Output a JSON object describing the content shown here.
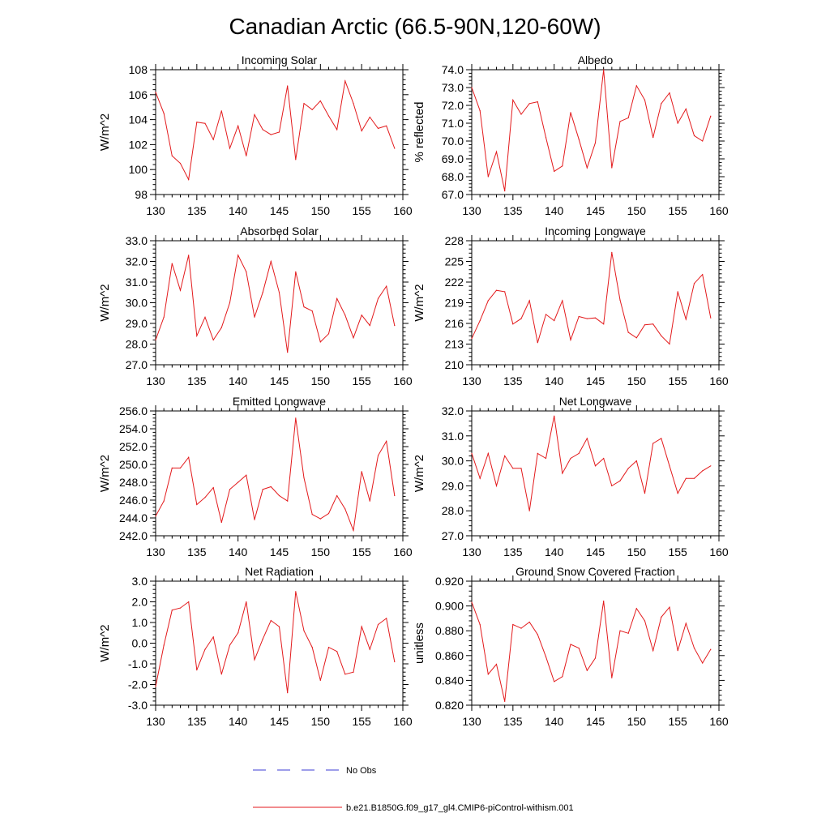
{
  "figure": {
    "title": "Canadian Arctic (66.5-90N,120-60W)"
  },
  "legend": {
    "items": [
      {
        "label": "No Obs",
        "color": "#3b3bd6",
        "style": "dashed"
      },
      {
        "label": "b.e21.B1850G.f09_g17_gl4.CMIP6-piControl-withism.001",
        "color": "#e31a1c",
        "style": "solid"
      }
    ]
  },
  "chart_data": [
    {
      "type": "line",
      "title": "Incoming Solar",
      "xlabel": "",
      "ylabel": "W/m^2",
      "xlim": [
        130,
        160
      ],
      "ylim": [
        98,
        108
      ],
      "yticks": [
        98,
        100,
        102,
        104,
        106,
        108
      ],
      "ytick_labels": [
        "98",
        "100",
        "102",
        "104",
        "106",
        "108"
      ],
      "xticks": [
        130,
        135,
        140,
        145,
        150,
        155,
        160
      ],
      "xtick_labels": [
        "130",
        "135",
        "140",
        "145",
        "150",
        "155",
        "160"
      ],
      "series": [
        {
          "name": "b.e21.B1850G.f09_g17_gl4.CMIP6-piControl-withism.001",
          "color": "#e31a1c",
          "x": [
            130,
            131,
            132,
            133,
            134,
            135,
            136,
            137,
            138,
            139,
            140,
            141,
            142,
            143,
            144,
            145,
            146,
            147,
            148,
            149,
            150,
            151,
            152,
            153,
            154,
            155,
            156,
            157,
            158,
            159
          ],
          "values": [
            106.2,
            104.5,
            101.1,
            100.5,
            99.2,
            103.8,
            103.7,
            102.4,
            104.7,
            101.7,
            103.5,
            101.1,
            104.4,
            103.2,
            102.8,
            103.0,
            106.7,
            100.8,
            105.3,
            104.8,
            105.5,
            104.3,
            103.2,
            107.1,
            105.3,
            103.1,
            104.2,
            103.3,
            103.5,
            101.7
          ]
        }
      ]
    },
    {
      "type": "line",
      "title": "Albedo",
      "xlabel": "",
      "ylabel": "% reflected",
      "xlim": [
        130,
        160
      ],
      "ylim": [
        67,
        74
      ],
      "yticks": [
        67,
        68,
        69,
        70,
        71,
        72,
        73,
        74
      ],
      "ytick_labels": [
        "67.0",
        "68.0",
        "69.0",
        "70.0",
        "71.0",
        "72.0",
        "73.0",
        "74.0"
      ],
      "xticks": [
        130,
        135,
        140,
        145,
        150,
        155,
        160
      ],
      "xtick_labels": [
        "130",
        "135",
        "140",
        "145",
        "150",
        "155",
        "160"
      ],
      "series": [
        {
          "name": "b.e21.B1850G.f09_g17_gl4.CMIP6-piControl-withism.001",
          "color": "#e31a1c",
          "x": [
            130,
            131,
            132,
            133,
            134,
            135,
            136,
            137,
            138,
            139,
            140,
            141,
            142,
            143,
            144,
            145,
            146,
            147,
            148,
            149,
            150,
            151,
            152,
            153,
            154,
            155,
            156,
            157,
            158,
            159
          ],
          "values": [
            73.0,
            71.7,
            68.0,
            69.4,
            67.2,
            72.3,
            71.5,
            72.1,
            72.2,
            70.2,
            68.3,
            68.6,
            71.6,
            70.1,
            68.5,
            69.9,
            74.0,
            68.5,
            71.1,
            71.3,
            73.1,
            72.3,
            70.2,
            72.1,
            72.7,
            71.0,
            71.8,
            70.3,
            70.0,
            71.4
          ]
        }
      ]
    },
    {
      "type": "line",
      "title": "Absorbed Solar",
      "xlabel": "",
      "ylabel": "W/m^2",
      "xlim": [
        130,
        160
      ],
      "ylim": [
        27,
        33
      ],
      "yticks": [
        27,
        28,
        29,
        30,
        31,
        32,
        33
      ],
      "ytick_labels": [
        "27.0",
        "28.0",
        "29.0",
        "30.0",
        "31.0",
        "32.0",
        "33.0"
      ],
      "xticks": [
        130,
        135,
        140,
        145,
        150,
        155,
        160
      ],
      "xtick_labels": [
        "130",
        "135",
        "140",
        "145",
        "150",
        "155",
        "160"
      ],
      "series": [
        {
          "name": "b.e21.B1850G.f09_g17_gl4.CMIP6-piControl-withism.001",
          "color": "#e31a1c",
          "x": [
            130,
            131,
            132,
            133,
            134,
            135,
            136,
            137,
            138,
            139,
            140,
            141,
            142,
            143,
            144,
            145,
            146,
            147,
            148,
            149,
            150,
            151,
            152,
            153,
            154,
            155,
            156,
            157,
            158,
            159
          ],
          "values": [
            28.2,
            29.3,
            31.9,
            30.6,
            32.3,
            28.4,
            29.3,
            28.2,
            28.8,
            30.0,
            32.3,
            31.5,
            29.3,
            30.5,
            32.0,
            30.5,
            27.6,
            31.5,
            29.8,
            29.6,
            28.1,
            28.5,
            30.2,
            29.4,
            28.3,
            29.4,
            28.9,
            30.2,
            30.8,
            28.9
          ]
        }
      ]
    },
    {
      "type": "line",
      "title": "Incoming Longwave",
      "xlabel": "",
      "ylabel": "W/m^2",
      "xlim": [
        130,
        160
      ],
      "ylim": [
        210,
        228
      ],
      "yticks": [
        210,
        213,
        216,
        219,
        222,
        225,
        228
      ],
      "ytick_labels": [
        "210",
        "213",
        "216",
        "219",
        "222",
        "225",
        "228"
      ],
      "xticks": [
        130,
        135,
        140,
        145,
        150,
        155,
        160
      ],
      "xtick_labels": [
        "130",
        "135",
        "140",
        "145",
        "150",
        "155",
        "160"
      ],
      "series": [
        {
          "name": "b.e21.B1850G.f09_g17_gl4.CMIP6-piControl-withism.001",
          "color": "#e31a1c",
          "x": [
            130,
            131,
            132,
            133,
            134,
            135,
            136,
            137,
            138,
            139,
            140,
            141,
            142,
            143,
            144,
            145,
            146,
            147,
            148,
            149,
            150,
            151,
            152,
            153,
            154,
            155,
            156,
            157,
            158,
            159
          ],
          "values": [
            213.8,
            216.4,
            219.3,
            220.8,
            220.6,
            215.9,
            216.7,
            219.3,
            213.2,
            217.3,
            216.4,
            219.3,
            213.6,
            217.0,
            216.7,
            216.8,
            215.9,
            226.3,
            219.4,
            214.7,
            213.9,
            215.8,
            215.9,
            214.2,
            213.0,
            220.6,
            216.6,
            221.8,
            223.1,
            216.8
          ]
        }
      ]
    },
    {
      "type": "line",
      "title": "Emitted Longwave",
      "xlabel": "",
      "ylabel": "W/m^2",
      "xlim": [
        130,
        160
      ],
      "ylim": [
        242,
        256
      ],
      "yticks": [
        242,
        244,
        246,
        248,
        250,
        252,
        254,
        256
      ],
      "ytick_labels": [
        "242.0",
        "244.0",
        "246.0",
        "248.0",
        "250.0",
        "252.0",
        "254.0",
        "256.0"
      ],
      "xticks": [
        130,
        135,
        140,
        145,
        150,
        155,
        160
      ],
      "xtick_labels": [
        "130",
        "135",
        "140",
        "145",
        "150",
        "155",
        "160"
      ],
      "series": [
        {
          "name": "b.e21.B1850G.f09_g17_gl4.CMIP6-piControl-withism.001",
          "color": "#e31a1c",
          "x": [
            130,
            131,
            132,
            133,
            134,
            135,
            136,
            137,
            138,
            139,
            140,
            141,
            142,
            143,
            144,
            145,
            146,
            147,
            148,
            149,
            150,
            151,
            152,
            153,
            154,
            155,
            156,
            157,
            158,
            159
          ],
          "values": [
            244.2,
            245.9,
            249.6,
            249.6,
            250.8,
            245.5,
            246.3,
            247.4,
            243.5,
            247.2,
            248.0,
            248.8,
            243.8,
            247.2,
            247.5,
            246.5,
            245.9,
            255.2,
            248.5,
            244.4,
            243.9,
            244.5,
            246.5,
            245.0,
            242.6,
            249.2,
            245.9,
            251.0,
            252.6,
            246.5
          ]
        }
      ]
    },
    {
      "type": "line",
      "title": "Net Longwave",
      "xlabel": "",
      "ylabel": "W/m^2",
      "xlim": [
        130,
        160
      ],
      "ylim": [
        27,
        32
      ],
      "yticks": [
        27,
        28,
        29,
        30,
        31,
        32
      ],
      "ytick_labels": [
        "27.0",
        "28.0",
        "29.0",
        "30.0",
        "31.0",
        "32.0"
      ],
      "xticks": [
        130,
        135,
        140,
        145,
        150,
        155,
        160
      ],
      "xtick_labels": [
        "130",
        "135",
        "140",
        "145",
        "150",
        "155",
        "160"
      ],
      "series": [
        {
          "name": "b.e21.B1850G.f09_g17_gl4.CMIP6-piControl-withism.001",
          "color": "#e31a1c",
          "x": [
            130,
            131,
            132,
            133,
            134,
            135,
            136,
            137,
            138,
            139,
            140,
            141,
            142,
            143,
            144,
            145,
            146,
            147,
            148,
            149,
            150,
            151,
            152,
            153,
            154,
            155,
            156,
            157,
            158,
            159
          ],
          "values": [
            30.3,
            29.3,
            30.3,
            29.0,
            30.2,
            29.7,
            29.7,
            28.0,
            30.3,
            30.1,
            31.8,
            29.5,
            30.1,
            30.3,
            30.9,
            29.8,
            30.1,
            29.0,
            29.2,
            29.7,
            30.0,
            28.7,
            30.7,
            30.9,
            29.8,
            28.7,
            29.3,
            29.3,
            29.6,
            29.8
          ]
        }
      ]
    },
    {
      "type": "line",
      "title": "Net Radiation",
      "xlabel": "",
      "ylabel": "W/m^2",
      "xlim": [
        130,
        160
      ],
      "ylim": [
        -3,
        3
      ],
      "yticks": [
        -3,
        -2,
        -1,
        0,
        1,
        2,
        3
      ],
      "ytick_labels": [
        "-3.0",
        "-2.0",
        "-1.0",
        "0.0",
        "1.0",
        "2.0",
        "3.0"
      ],
      "xticks": [
        130,
        135,
        140,
        145,
        150,
        155,
        160
      ],
      "xtick_labels": [
        "130",
        "135",
        "140",
        "145",
        "150",
        "155",
        "160"
      ],
      "series": [
        {
          "name": "b.e21.B1850G.f09_g17_gl4.CMIP6-piControl-withism.001",
          "color": "#e31a1c",
          "x": [
            130,
            131,
            132,
            133,
            134,
            135,
            136,
            137,
            138,
            139,
            140,
            141,
            142,
            143,
            144,
            145,
            146,
            147,
            148,
            149,
            150,
            151,
            152,
            153,
            154,
            155,
            156,
            157,
            158,
            159
          ],
          "values": [
            -2.1,
            -0.1,
            1.6,
            1.7,
            2.0,
            -1.3,
            -0.3,
            0.3,
            -1.5,
            -0.1,
            0.5,
            2.0,
            -0.8,
            0.2,
            1.1,
            0.8,
            -2.4,
            2.5,
            0.6,
            -0.2,
            -1.8,
            -0.2,
            -0.4,
            -1.5,
            -1.4,
            0.8,
            -0.3,
            0.9,
            1.2,
            -0.9
          ]
        }
      ]
    },
    {
      "type": "line",
      "title": "Ground Snow Covered Fraction",
      "xlabel": "",
      "ylabel": "unitless",
      "xlim": [
        130,
        160
      ],
      "ylim": [
        0.82,
        0.92
      ],
      "yticks": [
        0.82,
        0.84,
        0.86,
        0.88,
        0.9,
        0.92
      ],
      "ytick_labels": [
        "0.820",
        "0.840",
        "0.860",
        "0.880",
        "0.900",
        "0.920"
      ],
      "xticks": [
        130,
        135,
        140,
        145,
        150,
        155,
        160
      ],
      "xtick_labels": [
        "130",
        "135",
        "140",
        "145",
        "150",
        "155",
        "160"
      ],
      "series": [
        {
          "name": "b.e21.B1850G.f09_g17_gl4.CMIP6-piControl-withism.001",
          "color": "#e31a1c",
          "x": [
            130,
            131,
            132,
            133,
            134,
            135,
            136,
            137,
            138,
            139,
            140,
            141,
            142,
            143,
            144,
            145,
            146,
            147,
            148,
            149,
            150,
            151,
            152,
            153,
            154,
            155,
            156,
            157,
            158,
            159
          ],
          "values": [
            0.903,
            0.885,
            0.845,
            0.853,
            0.823,
            0.885,
            0.882,
            0.887,
            0.877,
            0.859,
            0.839,
            0.843,
            0.869,
            0.866,
            0.848,
            0.858,
            0.904,
            0.842,
            0.88,
            0.878,
            0.898,
            0.888,
            0.864,
            0.891,
            0.899,
            0.864,
            0.886,
            0.866,
            0.854,
            0.865
          ]
        }
      ]
    }
  ]
}
